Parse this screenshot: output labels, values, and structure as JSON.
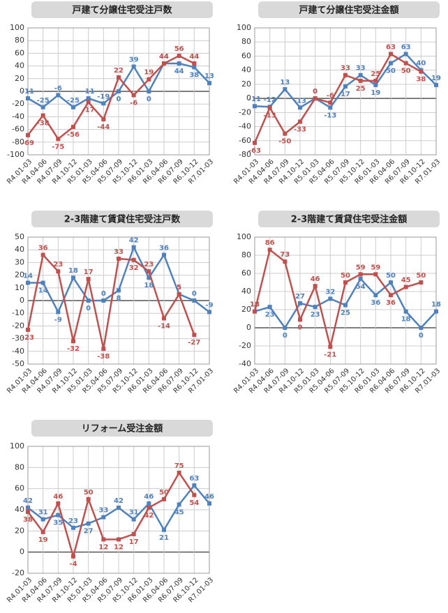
{
  "chart_data": [
    {
      "type": "line",
      "title": "戸建て分譲住宅受注戸数",
      "categories": [
        "R4.01-03",
        "R4.04-06",
        "R4.07-09",
        "R4.10-12",
        "R5.01-03",
        "R5.04-06",
        "R5.07-09",
        "R5.10-12",
        "R6.01-03",
        "R6.04-06",
        "R6.07-09",
        "R6.10-12",
        "R7.01-03"
      ],
      "series": [
        {
          "color": "#4f81bd",
          "values": [
            -11,
            -25,
            -6,
            -25,
            -11,
            -19,
            0,
            39,
            0,
            44,
            44,
            38,
            13
          ]
        },
        {
          "color": "#c0504d",
          "values": [
            -69,
            -38,
            -75,
            -56,
            -17,
            -44,
            22,
            -6,
            19,
            44,
            56,
            44,
            null
          ]
        }
      ],
      "ylim": [
        -100,
        100
      ],
      "yticks": [
        -100,
        -80,
        -60,
        -40,
        -20,
        0,
        20,
        40,
        60,
        80,
        100
      ],
      "grid": true
    },
    {
      "type": "line",
      "title": "戸建て分譲住宅受注金額",
      "categories": [
        "R4.01-03",
        "R4.04-06",
        "R4.07-09",
        "R4.10-12",
        "R5.01-03",
        "R5.04-06",
        "R5.07-09",
        "R5.10-12",
        "R6.01-03",
        "R6.04-06",
        "R6.07-09",
        "R6.10-12",
        "R7.01-03"
      ],
      "series": [
        {
          "color": "#4f81bd",
          "values": [
            -11,
            -12,
            13,
            -13,
            0,
            -13,
            17,
            33,
            19,
            50,
            63,
            40,
            19
          ]
        },
        {
          "color": "#c0504d",
          "values": [
            -63,
            -13,
            -50,
            -33,
            0,
            -6,
            33,
            25,
            25,
            63,
            50,
            38,
            null
          ]
        }
      ],
      "ylim": [
        -80,
        100
      ],
      "yticks": [
        -80,
        -60,
        -40,
        -20,
        0,
        20,
        40,
        60,
        80,
        100
      ],
      "grid": true
    },
    {
      "type": "line",
      "title": "2-3階建て賃貸住宅受注戸数",
      "categories": [
        "R4.01-03",
        "R4.04-06",
        "R4.07-09",
        "R4.10-12",
        "R5.01-03",
        "R5.04-06",
        "R5.07-09",
        "R5.10-12",
        "R6.01-03",
        "R6.04-06",
        "R6.07-09",
        "R6.10-12",
        "R7.01-03"
      ],
      "series": [
        {
          "color": "#4f81bd",
          "values": [
            14,
            14,
            -9,
            18,
            0,
            0,
            8,
            42,
            18,
            36,
            5,
            0,
            -9
          ]
        },
        {
          "color": "#c0504d",
          "values": [
            -23,
            36,
            23,
            -32,
            17,
            -38,
            33,
            32,
            23,
            -14,
            5,
            -27,
            null
          ]
        }
      ],
      "ylim": [
        -50,
        50
      ],
      "yticks": [
        -50,
        -40,
        -30,
        -20,
        -10,
        0,
        10,
        20,
        30,
        40,
        50
      ],
      "grid": true
    },
    {
      "type": "line",
      "title": "2-3階建て賃貸住宅受注金額",
      "categories": [
        "R4.01-03",
        "R4.04-06",
        "R4.07-09",
        "R4.10-12",
        "R5.01-03",
        "R5.04-06",
        "R5.07-09",
        "R5.10-12",
        "R6.01-03",
        "R6.04-06",
        "R6.07-09",
        "R6.10-12",
        "R7.01-03"
      ],
      "series": [
        {
          "color": "#4f81bd",
          "values": [
            18,
            23,
            0,
            27,
            23,
            32,
            25,
            54,
            36,
            50,
            18,
            0,
            18
          ]
        },
        {
          "color": "#c0504d",
          "values": [
            18,
            86,
            73,
            9,
            46,
            -21,
            50,
            59,
            59,
            36,
            45,
            50,
            null
          ]
        }
      ],
      "ylim": [
        -40,
        100
      ],
      "yticks": [
        -40,
        -20,
        0,
        20,
        40,
        60,
        80,
        100
      ],
      "grid": true
    },
    {
      "type": "line",
      "title": "リフォーム受注金額",
      "categories": [
        "R4.01-03",
        "R4.04-06",
        "R4.07-09",
        "R4.10-12",
        "R5.01-03",
        "R5.04-06",
        "R5.07-09",
        "R5.10-12",
        "R6.01-03",
        "R6.04-06",
        "R6.07-09",
        "R6.10-12",
        "R7.01-03"
      ],
      "series": [
        {
          "color": "#4f81bd",
          "values": [
            42,
            31,
            35,
            23,
            27,
            33,
            42,
            31,
            46,
            21,
            45,
            63,
            46
          ]
        },
        {
          "color": "#c0504d",
          "values": [
            38,
            19,
            46,
            -4,
            50,
            12,
            12,
            17,
            42,
            50,
            75,
            54,
            null
          ]
        }
      ],
      "ylim": [
        -20,
        100
      ],
      "yticks": [
        -20,
        0,
        20,
        40,
        60,
        80,
        100
      ],
      "grid": true
    }
  ]
}
